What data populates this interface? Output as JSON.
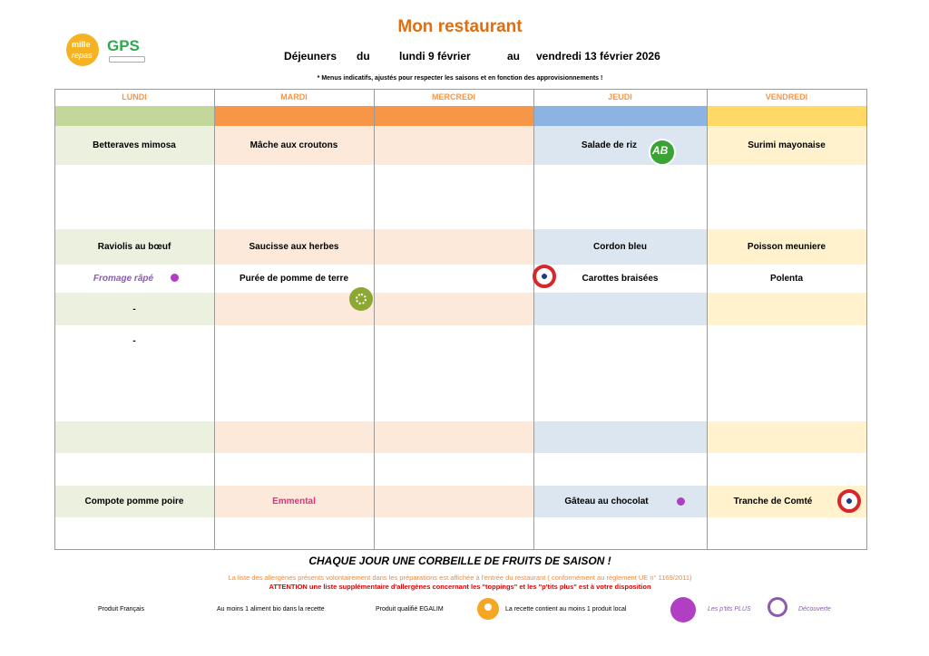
{
  "header": {
    "title": "Mon restaurant",
    "period_label": "Déjeuners",
    "from_label": "du",
    "from_date": "lundi 9 février",
    "to_label": "au",
    "to_date": "vendredi 13 février 2026",
    "note": "* Menus indicatifs, ajustés pour respecter les saisons et en fonction des approvisionnements !"
  },
  "logos": {
    "left_top": "mille",
    "left_bottom": "repas",
    "right": "GPS"
  },
  "badges": {
    "bio": "AB"
  },
  "table": {
    "days": [
      "LUNDI",
      "MARDI",
      "MERCREDI",
      "JEUDI",
      "VENDREDI"
    ],
    "rows": [
      [
        "Betteraves mimosa",
        "Mâche aux croutons",
        null,
        "Salade de riz",
        "Surimi mayonaise"
      ],
      [
        null,
        null,
        null,
        null,
        null
      ],
      [
        "Raviolis au bœuf",
        "Saucisse aux herbes",
        null,
        "Cordon bleu",
        "Poisson meuniere"
      ],
      [
        "Fromage râpé",
        "Purée de pomme de terre",
        null,
        "Carottes braisées",
        "Polenta"
      ],
      [
        "-",
        null,
        null,
        null,
        null
      ],
      [
        "-",
        null,
        null,
        null,
        null
      ],
      [
        null,
        null,
        null,
        null,
        null
      ],
      [
        null,
        null,
        null,
        null,
        null
      ],
      [
        "Compote pomme poire",
        "Emmental",
        null,
        "Gâteau au chocolat",
        "Tranche de Comté"
      ],
      [
        null,
        null,
        null,
        null,
        null
      ]
    ]
  },
  "footer": {
    "fruit": "CHAQUE JOUR UNE CORBEILLE DE FRUITS DE SAISON !",
    "allergens": "La liste des allergènes présents volontairement dans les préparations est affichée à l'entrée du restaurant ( conformément au règlement UE n° 1169/2011)",
    "attention": "ATTENTION une liste supplémentaire d'allergènes concernant les \"toppings\" et les \"p'tits plus\" est à votre disposition",
    "legend": [
      "Produit Français",
      "Au moins 1 aliment bio dans la recette",
      "Produit qualifié EGALIM",
      "La recette contient au moins 1 produit local",
      "Les p'tits PLUS",
      "Découverte"
    ]
  }
}
